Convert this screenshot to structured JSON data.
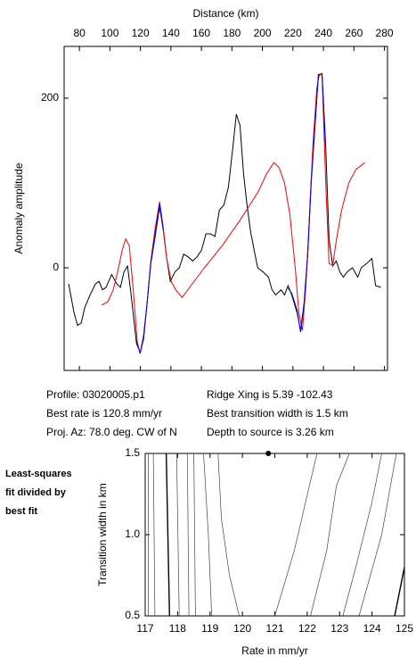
{
  "chart_data": [
    {
      "type": "line",
      "xlabel": "Distance (km)",
      "ylabel": "Anomaly amplitude",
      "xlim": [
        70,
        282
      ],
      "ylim": [
        -121,
        261
      ],
      "xticks": [
        80,
        100,
        120,
        140,
        160,
        180,
        200,
        220,
        240,
        260,
        280
      ],
      "yticks": [
        0,
        200
      ],
      "series": [
        {
          "color": "#000000",
          "x": [
            73.0,
            76.5,
            78.8,
            81.2,
            83.5,
            87.0,
            90.5,
            92.9,
            95.2,
            97.5,
            101.1,
            104.6,
            106.9,
            109.2,
            111.6,
            113.9,
            117.4,
            119.8,
            122.1,
            124.4,
            126.8,
            129.7,
            132.6,
            135.0,
            137.3,
            139.6,
            142.6,
            145.5,
            148.4,
            151.3,
            154.3,
            157.2,
            160.1,
            163.0,
            166.0,
            168.9,
            171.8,
            174.7,
            177.7,
            180.6,
            182.9,
            185.3,
            187.6,
            189.9,
            192.3,
            194.6,
            196.9,
            200.5,
            204.0,
            206.3,
            208.7,
            212.2,
            214.5,
            216.8,
            219.2,
            222.7,
            225.0,
            227.3,
            229.7,
            232.0,
            234.4,
            236.7,
            239.1,
            241.4,
            243.7,
            246.1,
            248.4,
            250.8,
            253.1,
            255.4,
            259.0,
            262.5,
            264.8,
            268.3,
            271.8,
            274.2,
            277.7
          ],
          "values": [
            -19,
            -53,
            -68,
            -65,
            -47,
            -32,
            -19,
            -16,
            -26,
            -23,
            -8,
            -19,
            -23,
            -5,
            2,
            -32,
            -89,
            -100,
            -84,
            -42,
            5,
            37,
            72,
            44,
            11,
            -16,
            -5,
            0,
            16,
            13,
            8,
            13,
            21,
            40,
            40,
            37,
            68,
            74,
            95,
            142,
            181,
            168,
            111,
            74,
            42,
            21,
            0,
            -5,
            -11,
            -26,
            -32,
            -26,
            -32,
            -21,
            -32,
            -53,
            -74,
            -42,
            16,
            105,
            168,
            226,
            229,
            147,
            34,
            2,
            8,
            -5,
            -11,
            -5,
            0,
            -11,
            0,
            5,
            11,
            -21,
            -23
          ]
        },
        {
          "color": "#ff0000",
          "x": [
            94.6,
            98.7,
            102.2,
            105.7,
            108.1,
            110.4,
            112.7,
            115.1,
            118.0,
            119.8,
            122.1,
            124.4,
            126.8,
            129.7,
            132.6,
            135.0,
            137.3,
            140.2,
            143.2,
            147.3,
            153.1,
            161.9,
            173.6,
            185.3,
            197.0,
            202.8,
            207.5,
            211.0,
            214.5,
            218.0,
            221.5,
            223.9,
            226.2,
            228.5,
            230.9,
            233.2,
            235.6,
            237.3,
            239.1,
            241.4,
            243.7,
            246.1,
            248.4,
            251.9,
            256.6,
            261.3,
            267.1
          ],
          "values": [
            -44,
            -40,
            -26,
            0,
            21,
            34,
            26,
            -21,
            -89,
            -101,
            -79,
            -42,
            8,
            47,
            78,
            47,
            11,
            -16,
            -26,
            -35,
            -21,
            0,
            26,
            56,
            89,
            111,
            124,
            118,
            100,
            63,
            0,
            -53,
            -74,
            -21,
            63,
            147,
            211,
            228,
            228,
            105,
            5,
            3,
            32,
            68,
            100,
            116,
            124
          ]
        },
        {
          "color": "#0000ff",
          "x": [
            117.5,
            119.8,
            122.1,
            124.4,
            126.8,
            129.7,
            132.6,
            135.0
          ],
          "values": [
            -85,
            -101,
            -82,
            -42,
            6,
            40,
            76,
            45
          ]
        },
        {
          "color": "#0000ff",
          "x": [
            216.8,
            219.2,
            222.7,
            225.0,
            227.3,
            229.7,
            232.0,
            234.4,
            236.7,
            239.1,
            241.4
          ],
          "values": [
            -24,
            -30,
            -50,
            -76,
            -44,
            14,
            100,
            165,
            228,
            228,
            140
          ]
        }
      ],
      "annotations": [
        "Profile: 03020005.p1",
        "Best rate is 120.8 mm/yr",
        "Proj. Az: 78.0 deg. CW of N",
        "Ridge Xing is 5.39 -102.43",
        "Best transition width is 1.5 km",
        "Depth to source is   3.26 km"
      ]
    },
    {
      "type": "contour",
      "xlabel": "Rate in mm/yr",
      "ylabel": "Transition width in km",
      "xlim": [
        117,
        125
      ],
      "ylim": [
        0.5,
        1.5
      ],
      "xticks": [
        117,
        118,
        119,
        120,
        121,
        122,
        123,
        124,
        125
      ],
      "yticks": [
        0.5,
        {
          "value": 1,
          "label": "1.0"
        },
        1.5
      ],
      "annotations": [
        "Least-squares",
        "fit divided by",
        "best fit"
      ],
      "best": {
        "x": 120.8,
        "y": 1.5
      },
      "contours": [
        {
          "color": "#444444",
          "x": [
            117.1,
            117.1
          ],
          "y": [
            1.5,
            0.5
          ]
        },
        {
          "color": "#444444",
          "x": [
            117.25,
            117.3
          ],
          "y": [
            1.5,
            0.5
          ]
        },
        {
          "color": "#000000",
          "x": [
            117.65,
            117.75
          ],
          "y": [
            1.5,
            0.5
          ]
        },
        {
          "color": "#444444",
          "x": [
            117.97,
            118.05
          ],
          "y": [
            1.5,
            0.5
          ]
        },
        {
          "color": "#444444",
          "x": [
            118.3,
            118.35
          ],
          "y": [
            1.5,
            0.5
          ]
        },
        {
          "color": "#444444",
          "x": [
            118.5,
            118.55
          ],
          "y": [
            1.5,
            0.5
          ]
        },
        {
          "color": "#444444",
          "x": [
            118.8,
            118.95,
            119.05
          ],
          "y": [
            1.5,
            1.0,
            0.5
          ]
        },
        {
          "color": "#444444",
          "x": [
            119.25,
            119.35,
            119.6,
            119.9
          ],
          "y": [
            1.5,
            1.1,
            0.75,
            0.5
          ]
        },
        {
          "color": "#444444",
          "x": [
            121.0,
            121.6,
            122.3
          ],
          "y": [
            0.5,
            0.9,
            1.5
          ]
        },
        {
          "color": "#444444",
          "x": [
            122.1,
            122.6,
            122.9,
            123.3
          ],
          "y": [
            0.5,
            0.9,
            1.3,
            1.5
          ]
        },
        {
          "color": "#444444",
          "x": [
            123.1,
            123.5,
            124.0,
            124.3
          ],
          "y": [
            0.5,
            0.8,
            1.2,
            1.5
          ]
        },
        {
          "color": "#444444",
          "x": [
            123.6,
            124.3,
            124.75
          ],
          "y": [
            0.5,
            1.0,
            1.5
          ]
        },
        {
          "color": "#000000",
          "x": [
            124.7,
            125.0
          ],
          "y": [
            0.5,
            0.8
          ]
        }
      ]
    }
  ]
}
